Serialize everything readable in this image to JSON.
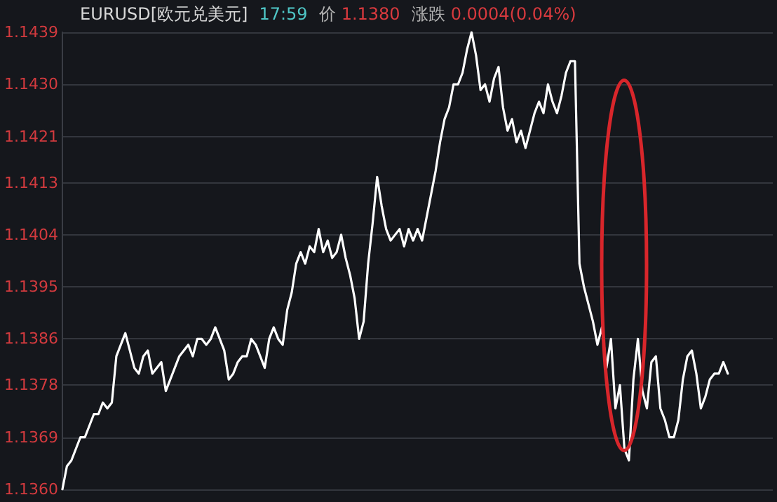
{
  "chart_data": {
    "type": "line",
    "title": "EURUSD[欧元兑美元]",
    "annotations": [
      "17:59",
      "价",
      "1.1380",
      "涨跌",
      "0.0004(0.04%)"
    ],
    "categories": [
      null,
      null,
      null,
      null,
      null,
      null,
      null,
      null,
      null,
      null,
      null,
      null,
      null,
      null,
      null,
      null,
      null,
      null,
      null,
      null,
      null,
      null,
      null,
      null,
      null,
      null,
      null,
      null,
      null,
      null,
      null,
      null,
      null,
      null,
      null,
      null,
      null,
      null,
      null,
      null,
      null,
      null,
      null,
      null,
      null,
      null,
      null,
      null,
      null,
      null,
      null,
      null,
      null,
      null,
      null,
      null,
      null,
      null,
      null,
      null,
      null,
      null,
      null,
      null,
      null,
      null,
      null,
      null,
      null,
      null,
      null,
      null,
      null,
      null,
      null,
      null,
      null,
      null,
      null,
      null,
      null,
      null,
      null,
      null,
      null,
      null,
      null,
      null,
      null,
      null,
      null,
      null,
      null,
      null,
      null,
      null,
      null,
      null,
      null,
      null,
      null,
      null,
      null,
      null,
      null,
      null,
      null,
      null,
      null,
      null,
      null,
      null,
      null,
      null,
      null,
      null,
      null,
      null,
      null,
      null,
      null,
      null,
      null,
      null,
      null,
      null,
      null,
      null,
      null,
      null,
      null,
      null,
      null,
      null,
      null,
      null,
      null,
      null,
      null,
      null,
      null,
      null,
      null,
      null,
      null,
      null,
      null,
      null,
      null,
      null,
      null,
      null,
      null,
      null,
      null,
      null,
      null,
      null,
      null
    ],
    "series": [
      {
        "color": "#ffffff",
        "values": [
          1.136,
          1.1364,
          1.1365,
          1.1367,
          1.1369,
          1.1369,
          1.1371,
          1.1373,
          1.1373,
          1.1375,
          1.1374,
          1.1375,
          1.1383,
          1.1385,
          1.1387,
          1.1384,
          1.1381,
          1.138,
          1.1383,
          1.1384,
          1.138,
          1.1381,
          1.1382,
          1.1377,
          1.1379,
          1.1381,
          1.1383,
          1.1384,
          1.1385,
          1.1383,
          1.1386,
          1.1386,
          1.1385,
          1.1386,
          1.1388,
          1.1386,
          1.1384,
          1.1379,
          1.138,
          1.1382,
          1.1383,
          1.1383,
          1.1386,
          1.1385,
          1.1383,
          1.1381,
          1.1386,
          1.1388,
          1.1386,
          1.1385,
          1.1391,
          1.1394,
          1.1399,
          1.1401,
          1.1399,
          1.1402,
          1.1401,
          1.1405,
          1.1401,
          1.1403,
          1.14,
          1.1401,
          1.1404,
          1.14,
          1.1397,
          1.1393,
          1.1386,
          1.1389,
          1.1399,
          1.1406,
          1.1414,
          1.1409,
          1.1405,
          1.1403,
          1.1404,
          1.1405,
          1.1402,
          1.1405,
          1.1403,
          1.1405,
          1.1403,
          1.1407,
          1.1411,
          1.1415,
          1.142,
          1.1424,
          1.1426,
          1.143,
          1.143,
          1.1432,
          1.1436,
          1.1439,
          1.1435,
          1.1429,
          1.143,
          1.1427,
          1.1431,
          1.1433,
          1.1426,
          1.1422,
          1.1424,
          1.142,
          1.1422,
          1.1419,
          1.1422,
          1.1425,
          1.1427,
          1.1425,
          1.143,
          1.1427,
          1.1425,
          1.1428,
          1.1432,
          1.1434,
          1.1434,
          1.1399,
          1.1395,
          1.1392,
          1.1389,
          1.1385,
          1.1388,
          1.1381,
          1.1386,
          1.1374,
          1.1378,
          1.1367,
          1.1365,
          1.1379,
          1.1386,
          1.1377,
          1.1374,
          1.1382,
          1.1383,
          1.1374,
          1.1372,
          1.1369,
          1.1369,
          1.1372,
          1.1379,
          1.1383,
          1.1384,
          1.138,
          1.1374,
          1.1376,
          1.1379,
          1.138,
          1.138,
          1.1382,
          1.138,
          null,
          null,
          null,
          null,
          null,
          null,
          null,
          null,
          null,
          null
        ]
      }
    ],
    "ylim": [
      1.136,
      1.1439
    ],
    "yticks": [
      {
        "value": 1.136,
        "label": "1.1360"
      },
      1.1369,
      1.1378,
      1.1386,
      1.1395,
      1.1404,
      1.1413,
      1.1421,
      {
        "value": 1.143,
        "label": "1.1430"
      },
      1.1439
    ],
    "grid": "y",
    "marker": "none",
    "line_style": "solid"
  }
}
